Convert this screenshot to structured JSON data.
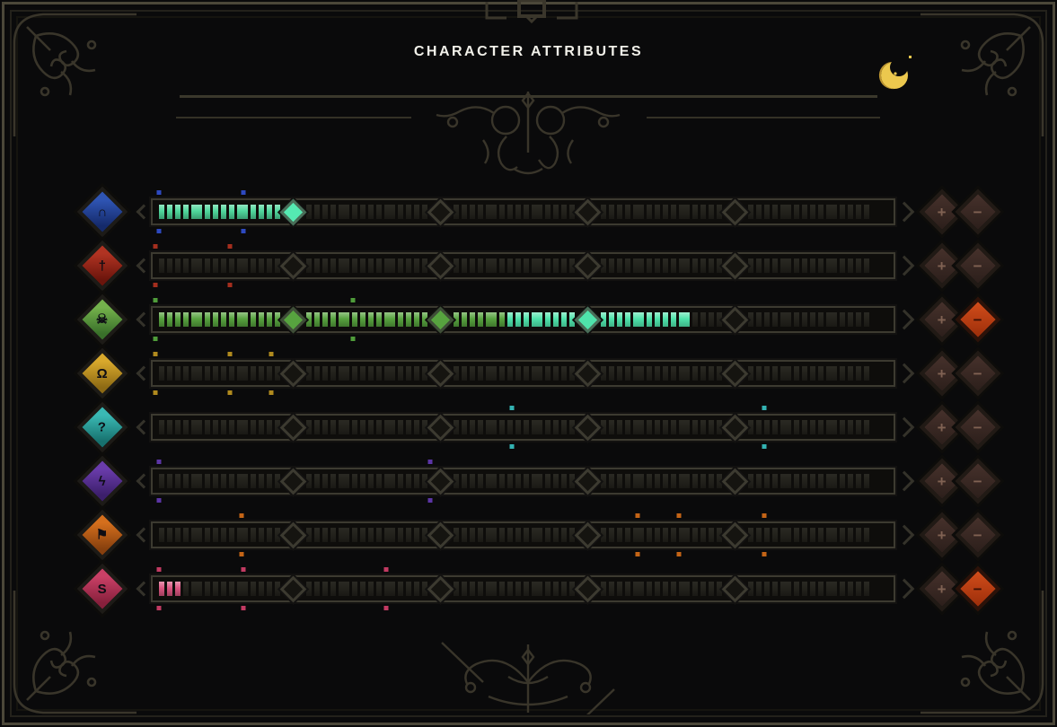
{
  "header": {
    "title": "CHARACTER ATTRIBUTES",
    "moon_icon": "crescent-moon",
    "moon_color": "#ecc84e",
    "moon_shadow_color": "#bd9530"
  },
  "bar_config": {
    "sections": 5,
    "pattern": [
      "tick",
      "tick",
      "tick",
      "tick",
      "block",
      "tick",
      "tick",
      "tick",
      "tick",
      "block",
      "tick",
      "tick",
      "tick",
      "tick"
    ],
    "total_cells": 70,
    "track_color": "#3c3a30",
    "empty_cell_color": "#2b2a23"
  },
  "buttons": {
    "plus_label": "+",
    "minus_label": "−"
  },
  "rows": [
    {
      "name": "blue",
      "icon_glyph": "∩",
      "icon_color": "#2f55b4",
      "icon_color_dark": "#152a6a",
      "filled_cells": 14,
      "bright_from": 99,
      "fill_base": "#4fd79c",
      "fill_bright": "#55eab2",
      "diamond_states": [
        "bright",
        "empty",
        "empty",
        "empty"
      ],
      "pip_color": "#2d49c0",
      "pips_pct": [
        0.8,
        12.2
      ],
      "plus_enabled": false,
      "minus_enabled": false
    },
    {
      "name": "red",
      "icon_glyph": "†",
      "icon_color": "#b13322",
      "icon_color_dark": "#6b150c",
      "filled_cells": 0,
      "bright_from": 99,
      "fill_base": "#c04030",
      "fill_bright": "#e06048",
      "diamond_states": [
        "empty",
        "empty",
        "empty",
        "empty"
      ],
      "pip_color": "#a42e1e",
      "pips_pct": [
        0.4,
        10.4
      ],
      "plus_enabled": false,
      "minus_enabled": false
    },
    {
      "name": "green",
      "icon_glyph": "☠",
      "icon_color": "#74b24c",
      "icon_color_dark": "#39702a",
      "filled_cells": 52,
      "bright_from": 34,
      "fill_base": "#57a33f",
      "fill_bright": "#4fe3ab",
      "diamond_states": [
        "fill",
        "fill",
        "bright",
        "empty"
      ],
      "pip_color": "#4f9c3a",
      "pips_pct": [
        0.4,
        27.0
      ],
      "plus_enabled": false,
      "minus_enabled": true
    },
    {
      "name": "gold",
      "icon_glyph": "Ω",
      "icon_color": "#d9a92c",
      "icon_color_dark": "#8d6a14",
      "filled_cells": 0,
      "bright_from": 99,
      "fill_base": "#d9a92c",
      "fill_bright": "#f0c54a",
      "diamond_states": [
        "empty",
        "empty",
        "empty",
        "empty"
      ],
      "pip_color": "#b08a1e",
      "pips_pct": [
        0.4,
        10.4,
        16.0
      ],
      "plus_enabled": false,
      "minus_enabled": false
    },
    {
      "name": "teal",
      "icon_glyph": "?",
      "icon_color": "#3ab9b4",
      "icon_color_dark": "#17716e",
      "filled_cells": 0,
      "bright_from": 99,
      "fill_base": "#3ab9b4",
      "fill_bright": "#56d8d2",
      "diamond_states": [
        "empty",
        "empty",
        "empty",
        "empty"
      ],
      "pip_color": "#33b2b2",
      "pips_pct": [
        48.5,
        82.5
      ],
      "plus_enabled": false,
      "minus_enabled": false
    },
    {
      "name": "purple",
      "icon_glyph": "ϟ",
      "icon_color": "#6a3cab",
      "icon_color_dark": "#3c1f6b",
      "filled_cells": 0,
      "bright_from": 99,
      "fill_base": "#6a3cab",
      "fill_bright": "#8a5cd0",
      "diamond_states": [
        "empty",
        "empty",
        "empty",
        "empty"
      ],
      "pip_color": "#5c35a6",
      "pips_pct": [
        0.8,
        37.5
      ],
      "plus_enabled": false,
      "minus_enabled": false
    },
    {
      "name": "orange",
      "icon_glyph": "⚑",
      "icon_color": "#d46f1d",
      "icon_color_dark": "#87400e",
      "filled_cells": 0,
      "bright_from": 99,
      "fill_base": "#d46f1d",
      "fill_bright": "#f08c3a",
      "diamond_states": [
        "empty",
        "empty",
        "empty",
        "empty"
      ],
      "pip_color": "#c46416",
      "pips_pct": [
        12.0,
        65.5,
        71.0,
        82.5
      ],
      "plus_enabled": false,
      "minus_enabled": false
    },
    {
      "name": "pink",
      "icon_glyph": "S",
      "icon_color": "#c94066",
      "icon_color_dark": "#87203c",
      "filled_cells": 3,
      "bright_from": 99,
      "fill_base": "#da5580",
      "fill_bright": "#ef6f96",
      "diamond_states": [
        "empty",
        "empty",
        "empty",
        "empty"
      ],
      "pip_color": "#c23a62",
      "pips_pct": [
        0.8,
        12.2,
        31.5
      ],
      "plus_enabled": false,
      "minus_enabled": true
    }
  ]
}
